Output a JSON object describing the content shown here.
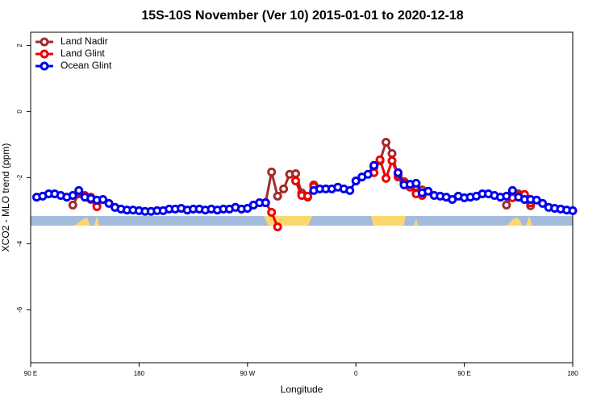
{
  "chart_data": {
    "type": "line",
    "title": "15S-10S November (Ver 10)   2015-01-01 to 2020-12-18",
    "x_label": "Longitude",
    "y_label": "XCO2 - MLO trend (ppm)",
    "xlim": [
      90,
      540
    ],
    "ylim": [
      -7.6,
      2.4
    ],
    "xticks": [
      {
        "value": 90,
        "label": "90 E"
      },
      180,
      {
        "value": 270,
        "label": "90 W"
      },
      {
        "value": 360,
        "label": "0"
      },
      {
        "value": 450,
        "label": "90 E"
      },
      {
        "value": 540,
        "label": "180"
      }
    ],
    "yticks": [
      -6,
      -4,
      -2,
      0,
      2
    ],
    "legend": "top-left",
    "x": [
      95,
      100,
      105,
      110,
      115,
      120,
      125,
      130,
      135,
      140,
      145,
      150,
      155,
      160,
      165,
      170,
      175,
      180,
      185,
      190,
      195,
      200,
      205,
      210,
      215,
      220,
      225,
      230,
      235,
      240,
      245,
      250,
      255,
      260,
      265,
      270,
      275,
      280,
      285,
      290,
      295,
      300,
      305,
      310,
      315,
      320,
      325,
      330,
      335,
      340,
      345,
      350,
      355,
      360,
      365,
      370,
      375,
      380,
      385,
      390,
      395,
      400,
      405,
      410,
      415,
      420,
      425,
      430,
      435,
      440,
      445,
      450,
      455,
      460,
      465,
      470,
      475,
      480,
      485,
      490,
      495,
      500,
      505,
      510,
      515,
      520,
      525,
      530,
      535,
      540
    ],
    "series": [
      {
        "name": "Land Nadir",
        "color": "#a52a2a",
        "values": [
          null,
          null,
          null,
          null,
          null,
          null,
          -2.83,
          -2.49,
          -2.56,
          -2.66,
          -2.83,
          null,
          null,
          null,
          null,
          null,
          null,
          null,
          null,
          null,
          null,
          null,
          null,
          null,
          null,
          null,
          null,
          null,
          null,
          null,
          null,
          null,
          null,
          null,
          null,
          null,
          null,
          null,
          -2.76,
          -1.83,
          -2.56,
          -2.34,
          -1.9,
          -1.88,
          -2.46,
          -2.59,
          -2.22,
          null,
          null,
          null,
          null,
          null,
          null,
          null,
          null,
          null,
          -1.68,
          -1.49,
          -0.93,
          -1.27,
          -1.98,
          -2.12,
          -2.22,
          -2.27,
          -2.37,
          null,
          null,
          null,
          null,
          null,
          null,
          null,
          null,
          null,
          null,
          null,
          null,
          null,
          -2.83,
          -2.49,
          -2.49,
          -2.56,
          -2.85,
          null,
          null,
          null,
          null,
          null,
          null,
          null
        ]
      },
      {
        "name": "Land Glint",
        "color": "#ee0000",
        "values": [
          null,
          null,
          null,
          null,
          null,
          null,
          null,
          -2.44,
          -2.54,
          -2.59,
          -2.88,
          null,
          null,
          null,
          null,
          null,
          null,
          null,
          null,
          null,
          null,
          null,
          null,
          null,
          null,
          null,
          null,
          null,
          null,
          null,
          null,
          null,
          null,
          null,
          null,
          null,
          null,
          null,
          -2.76,
          -3.05,
          -3.49,
          null,
          null,
          -2.1,
          -2.54,
          -2.56,
          -2.27,
          null,
          null,
          null,
          null,
          null,
          null,
          null,
          null,
          null,
          -1.85,
          -1.46,
          -2.02,
          -1.49,
          -1.93,
          -2.15,
          -2.29,
          -2.49,
          -2.54,
          null,
          null,
          null,
          null,
          null,
          null,
          null,
          null,
          null,
          null,
          null,
          null,
          null,
          null,
          -2.61,
          -2.54,
          -2.51,
          -2.76,
          null,
          null,
          null,
          null,
          null,
          null,
          null
        ]
      },
      {
        "name": "Ocean Glint",
        "color": "#0000ee",
        "values": [
          -2.59,
          -2.56,
          -2.49,
          -2.49,
          -2.54,
          -2.59,
          -2.54,
          -2.39,
          -2.59,
          -2.63,
          -2.68,
          -2.66,
          -2.78,
          -2.9,
          -2.95,
          -2.98,
          -2.98,
          -3.0,
          -3.02,
          -3.02,
          -3.0,
          -3.0,
          -2.95,
          -2.95,
          -2.93,
          -2.98,
          -2.95,
          -2.95,
          -2.98,
          -2.95,
          -2.98,
          -2.95,
          -2.95,
          -2.9,
          -2.95,
          -2.93,
          -2.83,
          -2.76,
          -2.76,
          null,
          null,
          null,
          null,
          null,
          null,
          null,
          -2.39,
          -2.34,
          -2.34,
          -2.34,
          -2.29,
          -2.34,
          -2.39,
          -2.1,
          -1.98,
          -1.9,
          -1.63,
          null,
          null,
          null,
          -1.85,
          -2.22,
          -2.2,
          -2.17,
          -2.46,
          -2.41,
          -2.54,
          -2.56,
          -2.59,
          -2.66,
          -2.56,
          -2.61,
          -2.59,
          -2.56,
          -2.49,
          -2.49,
          -2.54,
          -2.59,
          -2.56,
          -2.39,
          -2.59,
          -2.66,
          -2.66,
          -2.68,
          -2.78,
          -2.9,
          -2.93,
          -2.95,
          -2.98,
          -3.0
        ]
      }
    ]
  }
}
